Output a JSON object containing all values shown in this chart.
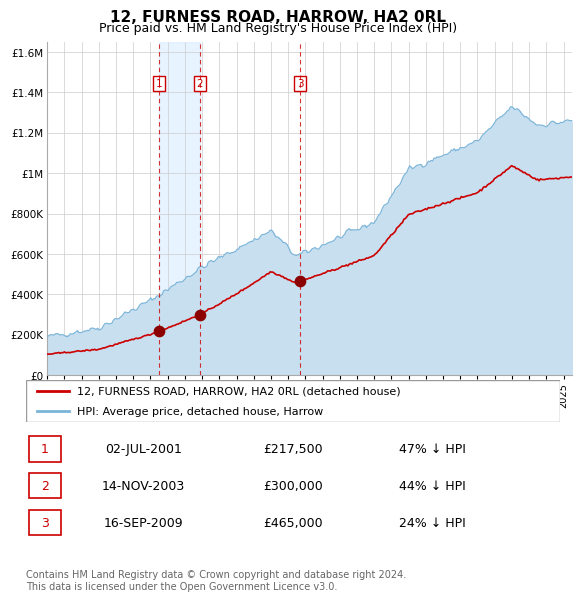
{
  "title": "12, FURNESS ROAD, HARROW, HA2 0RL",
  "subtitle": "Price paid vs. HM Land Registry's House Price Index (HPI)",
  "title_fontsize": 11,
  "subtitle_fontsize": 9,
  "ylim": [
    0,
    1650000
  ],
  "yticks": [
    0,
    200000,
    400000,
    600000,
    800000,
    1000000,
    1200000,
    1400000,
    1600000
  ],
  "ytick_labels": [
    "£0",
    "£200K",
    "£400K",
    "£600K",
    "£800K",
    "£1M",
    "£1.2M",
    "£1.4M",
    "£1.6M"
  ],
  "hpi_color": "#7ab4d8",
  "hpi_fill_color": "#c8dff0",
  "property_color": "#cc0000",
  "sale_color": "#8b0000",
  "dashed_line_color": "#cc0000",
  "shade_color": "#ddeeff",
  "sales": [
    {
      "date_num": 2001.5,
      "price": 217500,
      "label": "1"
    },
    {
      "date_num": 2003.87,
      "price": 300000,
      "label": "2"
    },
    {
      "date_num": 2009.71,
      "price": 465000,
      "label": "3"
    }
  ],
  "sale_labels": [
    {
      "num": "1",
      "date": "02-JUL-2001",
      "price": "£217,500",
      "pct": "47% ↓ HPI"
    },
    {
      "num": "2",
      "date": "14-NOV-2003",
      "price": "£300,000",
      "pct": "44% ↓ HPI"
    },
    {
      "num": "3",
      "date": "16-SEP-2009",
      "price": "£465,000",
      "pct": "24% ↓ HPI"
    }
  ],
  "legend_property": "12, FURNESS ROAD, HARROW, HA2 0RL (detached house)",
  "legend_hpi": "HPI: Average price, detached house, Harrow",
  "footer": "Contains HM Land Registry data © Crown copyright and database right 2024.\nThis data is licensed under the Open Government Licence v3.0.",
  "xmin": 1995,
  "xmax": 2025.5
}
